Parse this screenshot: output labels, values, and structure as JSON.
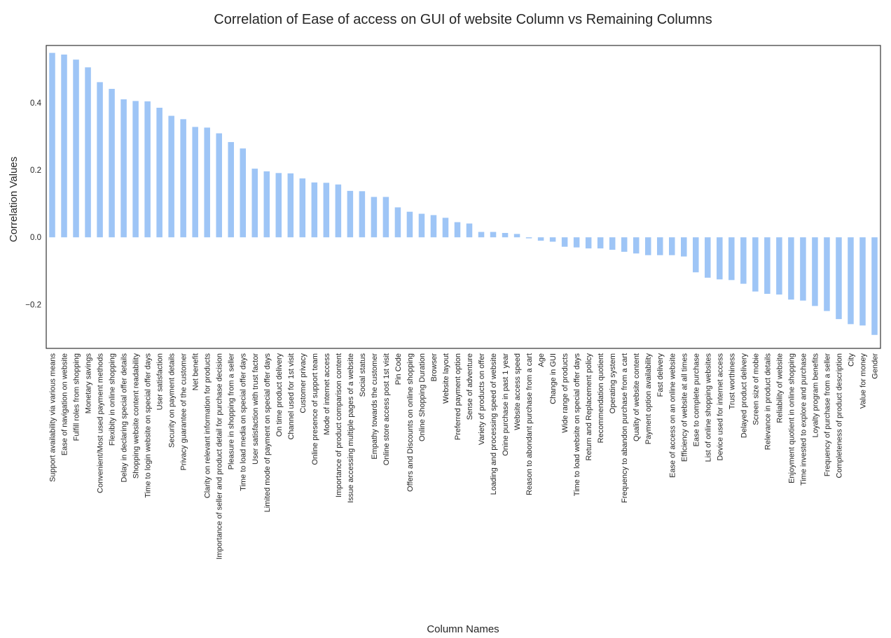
{
  "chart_data": {
    "type": "bar",
    "title": "Correlation of Ease of access on GUI of website Column vs Remaining Columns",
    "xlabel": "Column Names",
    "ylabel": "Correlation Values",
    "ylim": [
      -0.33,
      0.57
    ],
    "yticks": [
      -0.2,
      0.0,
      0.2,
      0.4
    ],
    "ytick_labels": [
      "−0.2",
      "0.0",
      "0.2",
      "0.4"
    ],
    "grid": false,
    "bar_color": "#9ec5f6",
    "categories": [
      "Support availability via various means",
      "Ease of navigation on website",
      "Fulfill roles from shopping",
      "Monetary savings",
      "Convenient/Most used payment methods",
      "Flexibity in online shopping",
      "Delay in declaring special offer details",
      "Shopping website content readability",
      "Time to login website on special offer days",
      "User satisfaction",
      "Security on payment details",
      "Privacy guarantee of the customer",
      "Net benefit",
      "Clarity on relevant information for products",
      "Importance of seller and product detail for purchase decision",
      "Pleasure in shopping from a seller",
      "Time to load media on special offer days",
      "User satisfaction with trust factor",
      "Limited mode of payment on special offer days",
      "On time product delivery",
      "Channel used for 1st visit",
      "Customer privacy",
      "Online presence of support team",
      "Mode of internet access",
      "Importance of product comparison content",
      "Issue accessing multiple pages of a website",
      "Social status",
      "Empathy towards the customer",
      "Online store access post 1st visit",
      "Pin Code",
      "Offers and Discounts on online shopping",
      "Online Shopping Duration",
      "Browser",
      "Website layout",
      "Preferred payment option",
      "Sense of adventure",
      "Variety of products on offer",
      "Loading and processing speed of website",
      "Onine purchase in past 1 year",
      "Website access speed",
      "Reason to abondant purchase from a cart",
      "Age",
      "Change in GUI",
      "Wide range of products",
      "Time to load website on special offer days",
      "Return and Replacement policy",
      "Recommendation quotient",
      "Operating system",
      "Frequency to abandon purchase from a cart",
      "Quality of website content",
      "Payment option availability",
      "Fast delivery",
      "Ease of access on an online website",
      "Efficiency of website at all times",
      "Ease to complete purchase",
      "List of online shopping websites",
      "Device used for internet access",
      "Trust worthiness",
      "Delayed product delivery",
      "Screen size of mobie",
      "Relevance in product details",
      "Reliability of website",
      "Enjoyment quotient in online shopping",
      "Time invested to explore and purchase",
      "Loyalty program benefits",
      "Frequency of purchase from a seller",
      "Completeness of product description",
      "City",
      "Value for money",
      "Gender"
    ],
    "values": [
      0.548,
      0.543,
      0.528,
      0.505,
      0.461,
      0.441,
      0.41,
      0.405,
      0.404,
      0.385,
      0.361,
      0.351,
      0.328,
      0.326,
      0.309,
      0.283,
      0.264,
      0.204,
      0.196,
      0.191,
      0.19,
      0.175,
      0.163,
      0.162,
      0.157,
      0.138,
      0.137,
      0.12,
      0.12,
      0.089,
      0.076,
      0.07,
      0.066,
      0.058,
      0.045,
      0.041,
      0.016,
      0.016,
      0.013,
      0.01,
      -0.003,
      -0.01,
      -0.013,
      -0.028,
      -0.03,
      -0.033,
      -0.033,
      -0.037,
      -0.043,
      -0.048,
      -0.053,
      -0.053,
      -0.053,
      -0.057,
      -0.104,
      -0.12,
      -0.125,
      -0.127,
      -0.138,
      -0.161,
      -0.168,
      -0.17,
      -0.185,
      -0.188,
      -0.204,
      -0.219,
      -0.243,
      -0.258,
      -0.262,
      -0.29
    ]
  }
}
